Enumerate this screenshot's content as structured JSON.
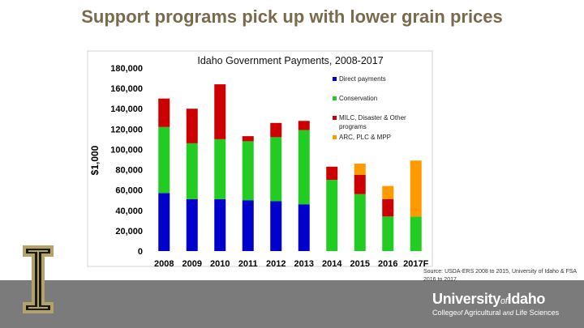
{
  "slide": {
    "title": "Support programs pick up with lower grain prices",
    "source_note": "Source: USDA-ERS 2008 to 2015, University of Idaho & FSA 2016 to 2017"
  },
  "branding": {
    "university": "University",
    "of": "of",
    "idaho": "Idaho",
    "college_pre": "College",
    "college_of": "of",
    "college_mid": "Agricultural",
    "college_and": "and",
    "college_post": "Life Sciences",
    "colors": {
      "gold": "#b3a369",
      "black": "#1a1a1a",
      "band": "#7b7b7b"
    }
  },
  "chart_data": {
    "type": "bar",
    "stacked": true,
    "title": "Idaho Government Payments, 2008-2017",
    "xlabel": "",
    "ylabel": "$1,000",
    "ylim": [
      0,
      180000
    ],
    "yticks": [
      0,
      20000,
      40000,
      60000,
      80000,
      100000,
      120000,
      140000,
      160000,
      180000
    ],
    "ytick_labels": [
      "0",
      "20,000",
      "40,000",
      "60,000",
      "80,000",
      "100,000",
      "120,000",
      "140,000",
      "160,000",
      "180,000"
    ],
    "categories": [
      "2008",
      "2009",
      "2010",
      "2011",
      "2012",
      "2013",
      "2014",
      "2015",
      "2016",
      "2017F"
    ],
    "series": [
      {
        "name": "Direct payments",
        "color": "#0000cc",
        "values": [
          57000,
          51000,
          51000,
          50000,
          49000,
          46000,
          0,
          0,
          0,
          0
        ]
      },
      {
        "name": "Conservation",
        "color": "#22cc22",
        "values": [
          65000,
          55000,
          59000,
          58000,
          63000,
          73000,
          70000,
          56000,
          34000,
          34000
        ]
      },
      {
        "name": "MILC, Disaster & Other programs",
        "color": "#cc0000",
        "values": [
          28000,
          34000,
          54000,
          5000,
          14000,
          9000,
          13000,
          19000,
          17000,
          0
        ]
      },
      {
        "name": "ARC, PLC & MPP",
        "color": "#ff9900",
        "values": [
          0,
          0,
          0,
          0,
          0,
          0,
          0,
          11000,
          13000,
          55000
        ]
      }
    ],
    "legend_position": "right",
    "grid": false
  }
}
